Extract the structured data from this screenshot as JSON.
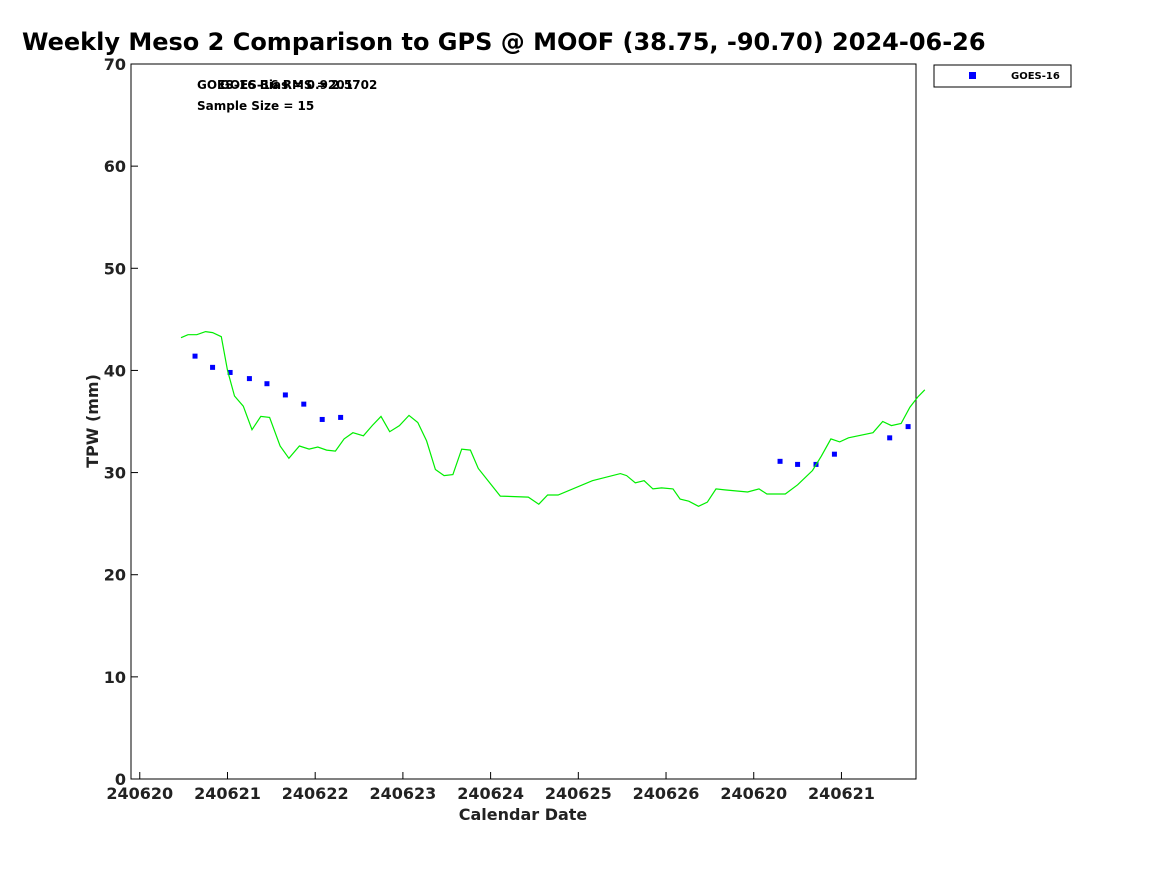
{
  "chart_data": {
    "type": "scatter",
    "title": "Weekly Meso 2 Comparison to GPS @ MOOF (38.75, -90.70) 2024-06-26",
    "xlabel": "Calendar Date",
    "ylabel": "TPW (mm)",
    "ylim": [
      0,
      70
    ],
    "xlim": [
      -0.1,
      8.85
    ],
    "yticks": [
      0,
      10,
      20,
      30,
      40,
      50,
      60,
      70
    ],
    "xticks": [
      {
        "x": 0,
        "label": "240620"
      },
      {
        "x": 1,
        "label": "240621"
      },
      {
        "x": 2,
        "label": "240622"
      },
      {
        "x": 3,
        "label": "240623"
      },
      {
        "x": 4,
        "label": "240624"
      },
      {
        "x": 5,
        "label": "240625"
      },
      {
        "x": 6,
        "label": "240626"
      },
      {
        "x": 7,
        "label": "240620"
      },
      {
        "x": 8,
        "label": "240621"
      }
    ],
    "annotations": [
      "GOES-16 Bias = 0.9201",
      "GOES-16 RMS = 2.5702",
      "Sample Size = 15"
    ],
    "legend": {
      "position": "top-right",
      "entries": [
        "GOES-16"
      ]
    },
    "grid": false,
    "colors": {
      "series": "#0000ff",
      "reference_line": "#00ee00"
    },
    "series": [
      {
        "name": "GOES-16",
        "marker": "square",
        "x": [
          0.63,
          0.83,
          1.03,
          1.25,
          1.45,
          1.66,
          1.87,
          2.08,
          2.29,
          7.3,
          7.5,
          7.71,
          7.92,
          8.55,
          8.76
        ],
        "y": [
          41.4,
          40.3,
          39.8,
          39.2,
          38.7,
          37.6,
          36.7,
          35.2,
          35.4,
          31.1,
          30.8,
          30.8,
          31.8,
          33.4,
          34.5
        ]
      },
      {
        "marker": "none",
        "x": [
          0.47,
          0.55,
          0.65,
          0.75,
          0.83,
          0.93,
          1.0,
          1.08,
          1.18,
          1.28,
          1.38,
          1.48,
          1.6,
          1.7,
          1.82,
          1.93,
          2.03,
          2.13,
          2.23,
          2.33,
          2.43,
          2.55,
          2.65,
          2.75,
          2.85,
          2.96,
          3.07,
          3.17,
          3.27,
          3.37,
          3.47,
          3.57,
          3.67,
          3.77,
          3.86,
          4.11,
          4.43,
          4.55,
          4.65,
          4.77,
          5.16,
          5.48,
          5.55,
          5.65,
          5.75,
          5.85,
          5.95,
          6.08,
          6.16,
          6.26,
          6.37,
          6.47,
          6.57,
          6.67,
          6.93,
          7.06,
          7.15,
          7.25,
          7.36,
          7.5,
          7.67,
          7.77,
          7.88,
          7.98,
          8.08,
          8.36,
          8.47,
          8.57,
          8.68,
          8.78,
          8.87,
          8.95
        ],
        "y": [
          43.2,
          43.5,
          43.5,
          43.8,
          43.7,
          43.3,
          40.0,
          37.5,
          36.5,
          34.2,
          35.5,
          35.4,
          32.6,
          31.4,
          32.6,
          32.3,
          32.5,
          32.2,
          32.1,
          33.3,
          33.9,
          33.6,
          34.6,
          35.5,
          34.0,
          34.6,
          35.6,
          34.9,
          33.1,
          30.3,
          29.7,
          29.8,
          32.3,
          32.2,
          30.4,
          27.7,
          27.6,
          26.9,
          27.8,
          27.8,
          29.2,
          29.9,
          29.7,
          29.0,
          29.2,
          28.4,
          28.5,
          28.4,
          27.4,
          27.2,
          26.7,
          27.1,
          28.4,
          28.3,
          28.1,
          28.4,
          27.9,
          27.9,
          27.9,
          28.8,
          30.2,
          31.6,
          33.3,
          33.0,
          33.4,
          33.9,
          35.0,
          34.6,
          34.8,
          36.4,
          37.4,
          38.1
        ]
      }
    ]
  }
}
